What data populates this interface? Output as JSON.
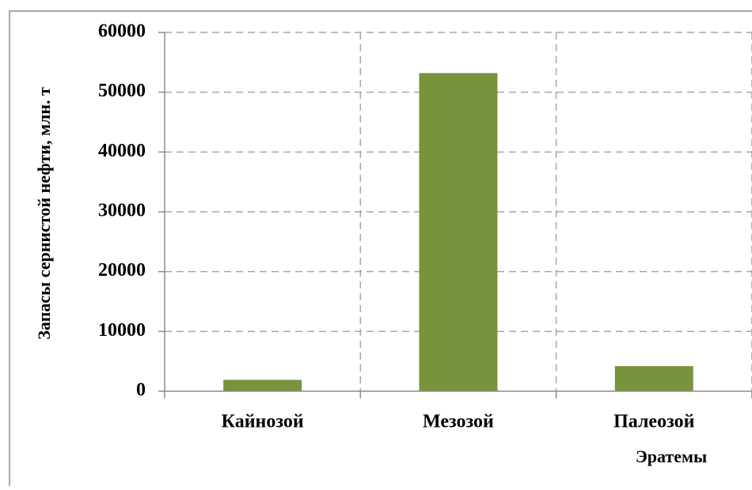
{
  "chart_data": {
    "type": "bar",
    "categories": [
      "Кайнозой",
      "Мезозой",
      "Палеозой"
    ],
    "values": [
      1900,
      53200,
      4200
    ],
    "color": "#77933c",
    "xlabel": "Эратемы",
    "ylabel": "Запасы сернистой нефти, млн. т",
    "ylim": [
      0,
      60000
    ],
    "yticks": [
      0,
      10000,
      20000,
      30000,
      40000,
      50000,
      60000
    ],
    "grid": true
  }
}
